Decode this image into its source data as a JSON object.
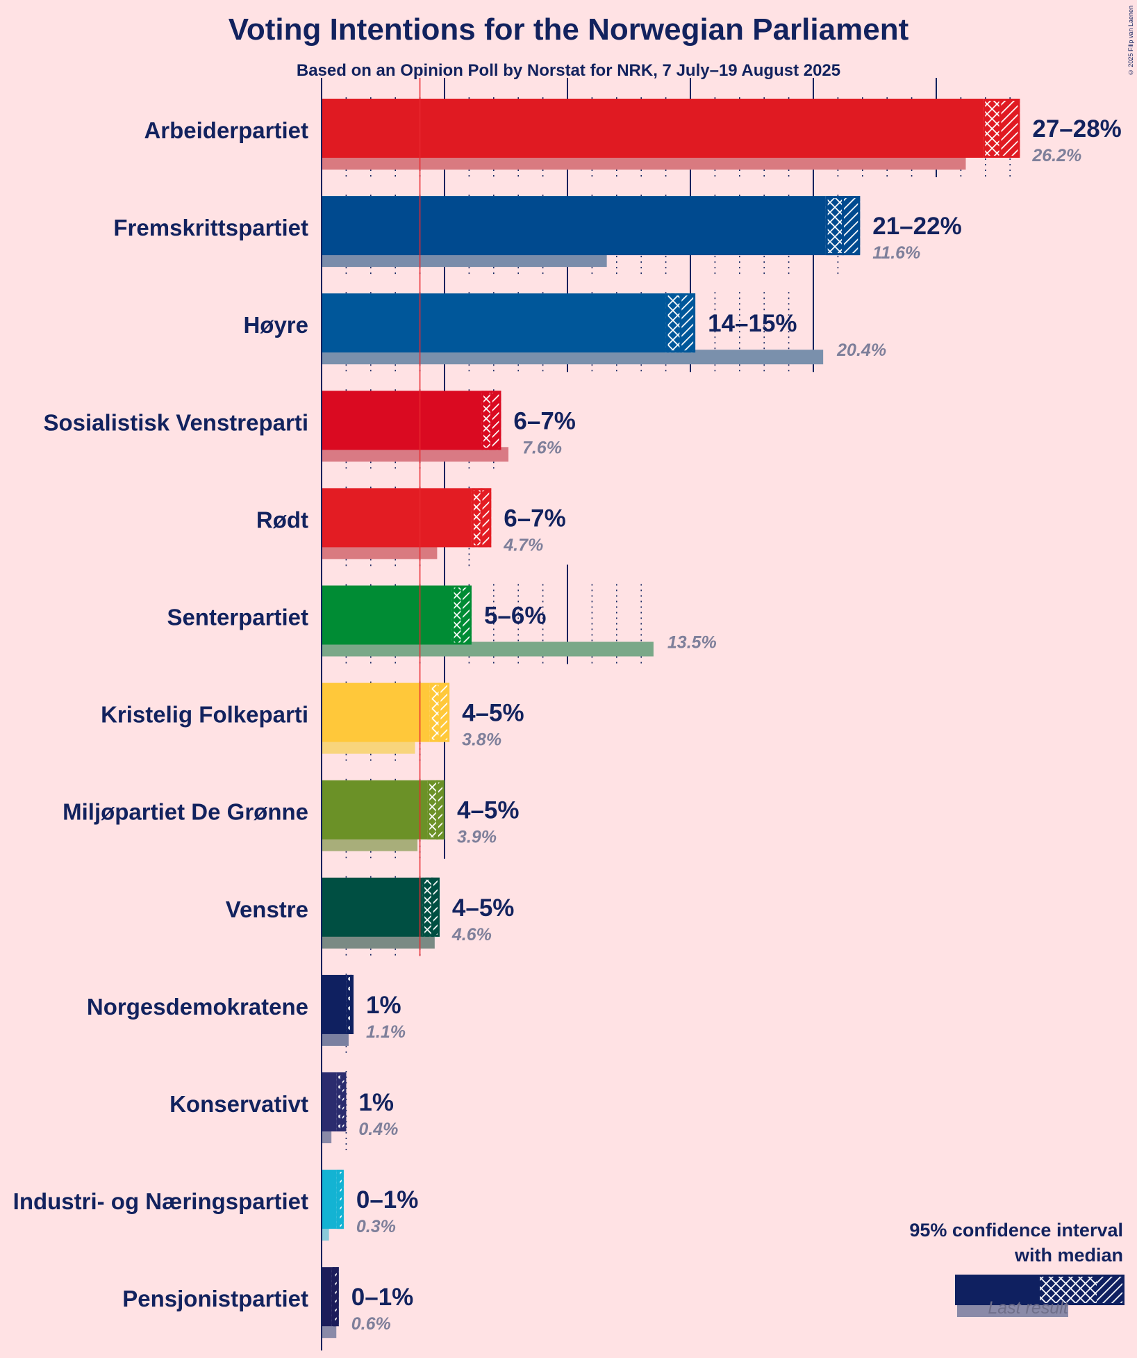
{
  "copyright": "© 2025 Filip van Laenen",
  "chart_data": {
    "type": "bar",
    "title": "Voting Intentions for the Norwegian Parliament",
    "subtitle": "Based on an Opinion Poll by Norstat for NRK, 7 July–19 August 2025",
    "xlim": [
      0,
      28.5
    ],
    "threshold": 4,
    "parties": [
      {
        "name": "Arbeiderpartiet",
        "low": 26.9,
        "median": 27.6,
        "high": 28.4,
        "label": "27–28%",
        "last": 26.2,
        "last_label": "26.2%",
        "color": "#E01A22",
        "last_color": "#D97A80"
      },
      {
        "name": "Fremskrittspartiet",
        "low": 20.5,
        "median": 21.2,
        "high": 21.9,
        "label": "21–22%",
        "last": 11.6,
        "last_label": "11.6%",
        "color": "#004A8F",
        "last_color": "#7A8CAA"
      },
      {
        "name": "Høyre",
        "low": 14.0,
        "median": 14.6,
        "high": 15.2,
        "label": "14–15%",
        "last": 20.4,
        "last_label": "20.4%",
        "color": "#00579A",
        "last_color": "#7A90AC"
      },
      {
        "name": "Sosialistisk Venstreparti",
        "low": 6.5,
        "median": 6.9,
        "high": 7.3,
        "label": "6–7%",
        "last": 7.6,
        "last_label": "7.6%",
        "color": "#DA0A21",
        "last_color": "#D97A84"
      },
      {
        "name": "Rødt",
        "low": 6.1,
        "median": 6.5,
        "high": 6.9,
        "label": "6–7%",
        "last": 4.7,
        "last_label": "4.7%",
        "color": "#E31C23",
        "last_color": "#D97A80"
      },
      {
        "name": "Senterpartiet",
        "low": 5.3,
        "median": 5.7,
        "high": 6.1,
        "label": "5–6%",
        "last": 13.5,
        "last_label": "13.5%",
        "color": "#008C34",
        "last_color": "#7AA888"
      },
      {
        "name": "Kristelig Folkeparti",
        "low": 4.4,
        "median": 4.8,
        "high": 5.2,
        "label": "4–5%",
        "last": 3.8,
        "last_label": "3.8%",
        "color": "#FFC83A",
        "last_color": "#F8D57C"
      },
      {
        "name": "Miljøpartiet De Grønne",
        "low": 4.3,
        "median": 4.7,
        "high": 5.0,
        "label": "4–5%",
        "last": 3.9,
        "last_label": "3.9%",
        "color": "#6B9127",
        "last_color": "#A8AE7A"
      },
      {
        "name": "Venstre",
        "low": 4.1,
        "median": 4.5,
        "high": 4.8,
        "label": "4–5%",
        "last": 4.6,
        "last_label": "4.6%",
        "color": "#004F42",
        "last_color": "#7A8A84"
      },
      {
        "name": "Norgesdemokratene",
        "low": 1.0,
        "median": 1.2,
        "high": 1.3,
        "label": "1%",
        "last": 1.1,
        "last_label": "1.1%",
        "color": "#0F2060",
        "last_color": "#7A80A0"
      },
      {
        "name": "Konservativt",
        "low": 0.6,
        "median": 0.8,
        "high": 1.0,
        "label": "1%",
        "last": 0.4,
        "last_label": "0.4%",
        "color": "#2B2C6E",
        "last_color": "#8A8AA8"
      },
      {
        "name": "Industri- og Næringspartiet",
        "low": 0.6,
        "median": 0.7,
        "high": 0.9,
        "label": "0–1%",
        "last": 0.3,
        "last_label": "0.3%",
        "color": "#13B3D3",
        "last_color": "#8ACADA"
      },
      {
        "name": "Pensjonistpartiet",
        "low": 0.4,
        "median": 0.5,
        "high": 0.7,
        "label": "0–1%",
        "last": 0.6,
        "last_label": "0.6%",
        "color": "#1C1D5A",
        "last_color": "#8A8AA8"
      }
    ],
    "legend": {
      "title_line1": "95% confidence interval",
      "title_line2": "with median",
      "last_result": "Last result"
    }
  }
}
